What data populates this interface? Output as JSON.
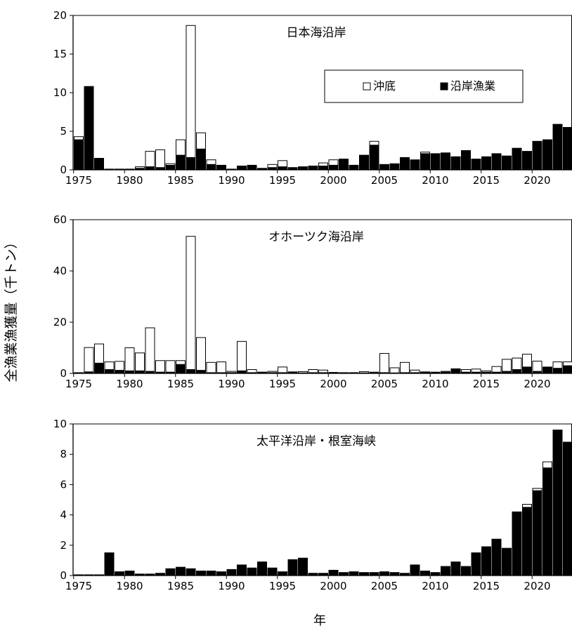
{
  "ylabel": "全漁業漁獲量（千トン）",
  "xlabel": "年",
  "legend": {
    "offshore": "沖底",
    "coastal": "沿岸漁業",
    "offshore_color": "#ffffff",
    "coastal_color": "#000000"
  },
  "chart_data": [
    {
      "type": "bar",
      "stacked": true,
      "title": "日本海沿岸",
      "ylim": [
        0,
        20
      ],
      "yticks": [
        "0",
        "5",
        "10",
        "15",
        "20"
      ],
      "xticks": [
        "1975",
        "1980",
        "1985",
        "1990",
        "1995",
        "2000",
        "2005",
        "2010",
        "2015",
        "2020"
      ],
      "legend_position": "top-right",
      "categories": [
        1975,
        1976,
        1977,
        1978,
        1979,
        1980,
        1981,
        1982,
        1983,
        1984,
        1985,
        1986,
        1987,
        1988,
        1989,
        1990,
        1991,
        1992,
        1993,
        1994,
        1995,
        1996,
        1997,
        1998,
        1999,
        2000,
        2001,
        2002,
        2003,
        2004,
        2005,
        2006,
        2007,
        2008,
        2009,
        2010,
        2011,
        2012,
        2013,
        2014,
        2015,
        2016,
        2017,
        2018,
        2019,
        2020,
        2021,
        2022,
        2023
      ],
      "series": [
        {
          "name": "沿岸漁業",
          "values": [
            3.9,
            10.8,
            1.5,
            0.1,
            0.1,
            0.1,
            0.2,
            0.4,
            0.3,
            0.6,
            1.9,
            1.6,
            2.7,
            0.7,
            0.6,
            0.1,
            0.5,
            0.6,
            0.2,
            0.3,
            0.4,
            0.3,
            0.4,
            0.4,
            0.5,
            0.6,
            1.4,
            0.6,
            1.9,
            3.2,
            0.7,
            0.7,
            1.6,
            1.3,
            2.1,
            2.1,
            2.2,
            1.7,
            2.5,
            1.4,
            1.7,
            2.1,
            1.8,
            2.8,
            2.4,
            3.7,
            3.9,
            5.9,
            5.5
          ]
        },
        {
          "name": "沖底",
          "values": [
            0.4,
            0,
            0,
            0,
            0,
            0,
            0.2,
            2.0,
            2.3,
            0.2,
            2.0,
            17.1,
            2.1,
            0.6,
            0,
            0,
            0,
            0,
            0,
            0.4,
            0.8,
            0,
            0,
            0.1,
            0.4,
            0.7,
            0,
            0,
            0,
            0.5,
            0,
            0.1,
            0,
            0,
            0.2,
            0,
            0,
            0,
            0,
            0,
            0,
            0,
            0,
            0,
            0,
            0,
            0,
            0,
            0
          ]
        }
      ]
    },
    {
      "type": "bar",
      "stacked": true,
      "title": "オホーツク海沿岸",
      "ylim": [
        0,
        60
      ],
      "yticks": [
        "0",
        "20",
        "40",
        "60"
      ],
      "xticks": [
        "1975",
        "1980",
        "1985",
        "1990",
        "1995",
        "2000",
        "2005",
        "2010",
        "2015",
        "2020"
      ],
      "categories": [
        1975,
        1976,
        1977,
        1978,
        1979,
        1980,
        1981,
        1982,
        1983,
        1984,
        1985,
        1986,
        1987,
        1988,
        1989,
        1990,
        1991,
        1992,
        1993,
        1994,
        1995,
        1996,
        1997,
        1998,
        1999,
        2000,
        2001,
        2002,
        2003,
        2004,
        2005,
        2006,
        2007,
        2008,
        2009,
        2010,
        2011,
        2012,
        2013,
        2014,
        2015,
        2016,
        2017,
        2018,
        2019,
        2020,
        2021,
        2022,
        2023
      ],
      "series": [
        {
          "name": "沿岸漁業",
          "values": [
            0.3,
            0.6,
            4.0,
            1.5,
            1.2,
            1.0,
            1.0,
            0.8,
            0.5,
            0.5,
            3.5,
            1.5,
            1.2,
            0.3,
            0.3,
            0.3,
            1.0,
            0.3,
            0.3,
            0.3,
            0.3,
            0.3,
            0.2,
            0.3,
            0.3,
            0.2,
            0.2,
            0.2,
            0.2,
            0.2,
            0.3,
            0.2,
            0.3,
            0.3,
            0.3,
            0.3,
            0.5,
            1.8,
            0.5,
            0.5,
            0.5,
            0.5,
            0.8,
            1.5,
            2.5,
            0.8,
            2.5,
            2.0,
            3.0
          ]
        },
        {
          "name": "沖底",
          "values": [
            0,
            9.5,
            7.5,
            3.0,
            3.5,
            9.0,
            7.0,
            17.0,
            4.5,
            4.5,
            1.5,
            52.0,
            12.8,
            4.0,
            4.2,
            0.5,
            11.5,
            1.2,
            0.2,
            0.5,
            2.2,
            0.3,
            0.5,
            1.2,
            1.0,
            0.2,
            0.1,
            0.1,
            0.5,
            0.3,
            7.5,
            2.0,
            4.0,
            1.0,
            0.3,
            0.2,
            0.3,
            0,
            1.0,
            1.2,
            0.5,
            2.2,
            4.7,
            4.5,
            5.0,
            4.0,
            0,
            2.5,
            1.5
          ]
        }
      ]
    },
    {
      "type": "bar",
      "stacked": true,
      "title": "太平洋沿岸・根室海峡",
      "ylim": [
        0,
        10
      ],
      "yticks": [
        "0",
        "2",
        "4",
        "6",
        "8",
        "10"
      ],
      "xticks": [
        "1975",
        "1980",
        "1985",
        "1990",
        "1995",
        "2000",
        "2005",
        "2010",
        "2015",
        "2020"
      ],
      "categories": [
        1975,
        1976,
        1977,
        1978,
        1979,
        1980,
        1981,
        1982,
        1983,
        1984,
        1985,
        1986,
        1987,
        1988,
        1989,
        1990,
        1991,
        1992,
        1993,
        1994,
        1995,
        1996,
        1997,
        1998,
        1999,
        2000,
        2001,
        2002,
        2003,
        2004,
        2005,
        2006,
        2007,
        2008,
        2009,
        2010,
        2011,
        2012,
        2013,
        2014,
        2015,
        2016,
        2017,
        2018,
        2019,
        2020,
        2021,
        2022,
        2023
      ],
      "series": [
        {
          "name": "沿岸漁業",
          "values": [
            0.05,
            0.05,
            0.05,
            1.5,
            0.25,
            0.3,
            0.1,
            0.1,
            0.15,
            0.45,
            0.55,
            0.45,
            0.3,
            0.3,
            0.25,
            0.4,
            0.7,
            0.5,
            0.9,
            0.5,
            0.25,
            1.05,
            1.15,
            0.15,
            0.15,
            0.35,
            0.2,
            0.25,
            0.2,
            0.2,
            0.25,
            0.2,
            0.15,
            0.7,
            0.3,
            0.2,
            0.6,
            0.9,
            0.6,
            1.5,
            1.9,
            2.4,
            1.8,
            4.2,
            4.5,
            5.6,
            7.1,
            9.6,
            8.8
          ]
        },
        {
          "name": "沖底",
          "values": [
            0,
            0,
            0,
            0,
            0,
            0,
            0,
            0,
            0,
            0,
            0,
            0,
            0,
            0,
            0,
            0,
            0,
            0,
            0,
            0,
            0,
            0,
            0,
            0,
            0,
            0,
            0,
            0,
            0,
            0,
            0,
            0,
            0,
            0,
            0,
            0,
            0,
            0,
            0,
            0,
            0,
            0,
            0,
            0,
            0.2,
            0.15,
            0.4,
            0,
            0
          ]
        }
      ]
    }
  ]
}
